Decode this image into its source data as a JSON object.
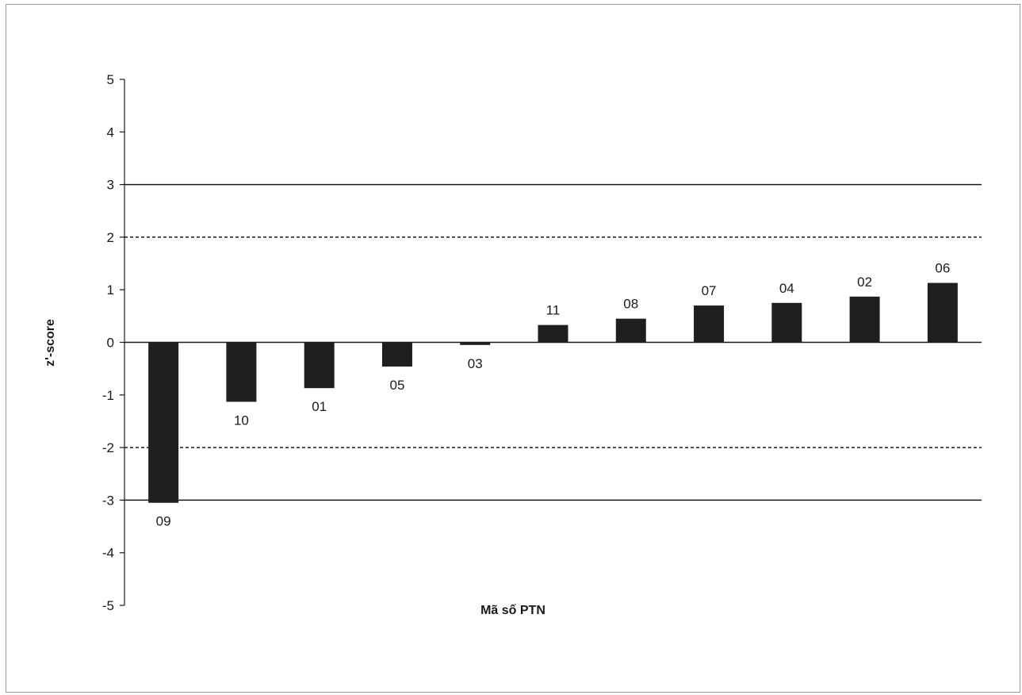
{
  "chart_data": {
    "type": "bar",
    "title": "",
    "xlabel": "Mã số PTN",
    "ylabel": "z'-score",
    "ylim": [
      -5,
      5
    ],
    "yticks": [
      "5",
      "4",
      "3",
      "2",
      "1",
      "0",
      "-1",
      "-2",
      "-3",
      "-4",
      "-5"
    ],
    "categories": [
      "09",
      "10",
      "01",
      "05",
      "03",
      "11",
      "08",
      "07",
      "04",
      "02",
      "06"
    ],
    "values": [
      -3.05,
      -1.13,
      -0.87,
      -0.46,
      -0.05,
      0.33,
      0.45,
      0.7,
      0.75,
      0.87,
      1.13
    ],
    "reference_lines": [
      {
        "value": 3,
        "style": "solid"
      },
      {
        "value": 2,
        "style": "dashed"
      },
      {
        "value": -2,
        "style": "dashed"
      },
      {
        "value": -3,
        "style": "solid"
      }
    ],
    "bar_color": "#1f1f1f",
    "legend": "none",
    "grid": false
  }
}
